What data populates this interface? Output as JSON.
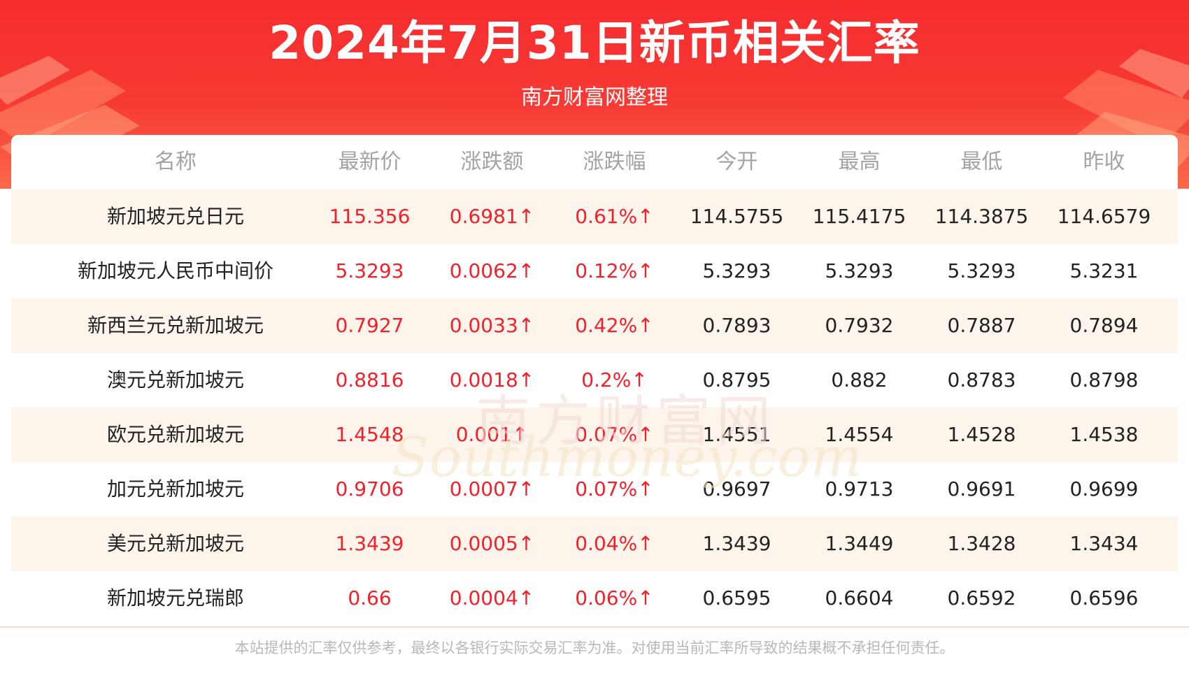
{
  "header": {
    "title": "2024年7月31日新币相关汇率",
    "subtitle": "南方财富网整理"
  },
  "table": {
    "columns": [
      "名称",
      "最新价",
      "涨跌额",
      "涨跌幅",
      "今开",
      "最高",
      "最低",
      "昨收"
    ],
    "rows": [
      [
        "新加坡元兑日元",
        "115.356",
        "0.6981↑",
        "0.61%↑",
        "114.5755",
        "115.4175",
        "114.3875",
        "114.6579"
      ],
      [
        "新加坡元人民币中间价",
        "5.3293",
        "0.0062↑",
        "0.12%↑",
        "5.3293",
        "5.3293",
        "5.3293",
        "5.3231"
      ],
      [
        "新西兰元兑新加坡元",
        "0.7927",
        "0.0033↑",
        "0.42%↑",
        "0.7893",
        "0.7932",
        "0.7887",
        "0.7894"
      ],
      [
        "澳元兑新加坡元",
        "0.8816",
        "0.0018↑",
        "0.2%↑",
        "0.8795",
        "0.882",
        "0.8783",
        "0.8798"
      ],
      [
        "欧元兑新加坡元",
        "1.4548",
        "0.001↑",
        "0.07%↑",
        "1.4551",
        "1.4554",
        "1.4528",
        "1.4538"
      ],
      [
        "加元兑新加坡元",
        "0.9706",
        "0.0007↑",
        "0.07%↑",
        "0.9697",
        "0.9713",
        "0.9691",
        "0.9699"
      ],
      [
        "美元兑新加坡元",
        "1.3439",
        "0.0005↑",
        "0.04%↑",
        "1.3439",
        "1.3449",
        "1.3428",
        "1.3434"
      ],
      [
        "新加坡元兑瑞郎",
        "0.66",
        "0.0004↑",
        "0.06%↑",
        "0.6595",
        "0.6604",
        "0.6592",
        "0.6596"
      ]
    ]
  },
  "watermark": {
    "cn": "南方财富网",
    "en": "Southmoney.com"
  },
  "footer": {
    "disclaimer": "本站提供的汇率仅供参考，最终以各银行实际交易汇率为准。对使用当前汇率所导致的结果概不承担任何责任。"
  },
  "colors": {
    "header_red": "#f62c2f",
    "rise_red": "#f3202a",
    "row_shade": "#fdf4ec",
    "header_text_gray": "#a3a3a3"
  }
}
